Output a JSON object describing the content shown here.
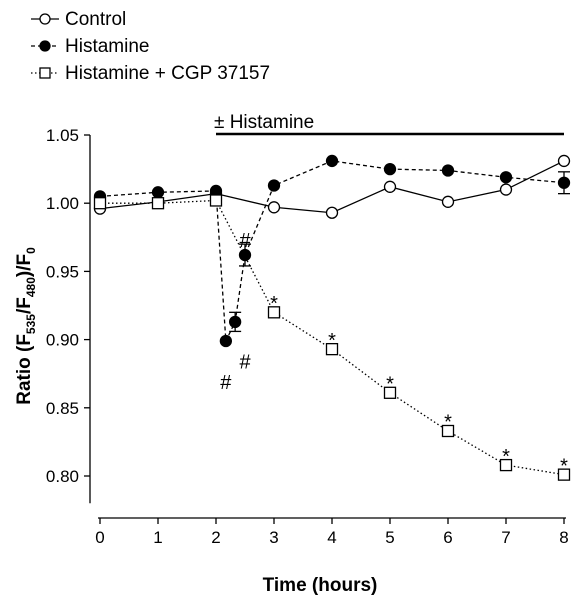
{
  "chart_data": {
    "type": "line",
    "title": "",
    "xlabel": "Time (hours)",
    "ylabel_parts": [
      "Ratio (F",
      "535",
      "/F",
      "480",
      ")/F",
      "0"
    ],
    "xlim": [
      0,
      8
    ],
    "ylim": [
      0.78,
      1.05
    ],
    "x_ticks": [
      0,
      1,
      2,
      3,
      4,
      5,
      6,
      7,
      8
    ],
    "y_ticks": [
      0.8,
      0.85,
      0.9,
      0.95,
      1.0,
      1.05
    ],
    "y_tick_labels": [
      "0.80",
      "0.85",
      "0.90",
      "0.95",
      "1.00",
      "1.05"
    ],
    "grid": false,
    "legend_position": "top-left",
    "treatment_bar": {
      "label": "± Histamine",
      "x_start": 2,
      "x_end": 8
    },
    "series": [
      {
        "name": "Control",
        "marker": "open-circle",
        "line": "solid",
        "x": [
          0,
          1,
          2,
          3,
          4,
          5,
          6,
          7,
          8
        ],
        "y": [
          0.996,
          1.001,
          1.007,
          0.997,
          0.993,
          1.012,
          1.001,
          1.01,
          1.031
        ],
        "err": [
          0,
          0,
          0,
          0,
          0,
          0,
          0,
          0,
          0
        ]
      },
      {
        "name": "Histamine",
        "marker": "filled-circle",
        "line": "dashed",
        "x": [
          0,
          1,
          2,
          2.17,
          2.33,
          2.5,
          3,
          4,
          5,
          6,
          7,
          8
        ],
        "y": [
          1.005,
          1.008,
          1.009,
          0.899,
          0.913,
          0.962,
          1.013,
          1.031,
          1.025,
          1.024,
          1.019,
          1.015
        ],
        "err": [
          0,
          0,
          0,
          0,
          0.007,
          0.008,
          0,
          0,
          0,
          0,
          0,
          0.008
        ]
      },
      {
        "name": "Histamine + CGP 37157",
        "marker": "open-square",
        "line": "dotted",
        "x": [
          0,
          1,
          2,
          3,
          4,
          5,
          6,
          7,
          8
        ],
        "y": [
          1.0,
          1.0,
          1.002,
          0.92,
          0.893,
          0.861,
          0.833,
          0.808,
          0.801
        ],
        "err": [
          0,
          0,
          0,
          0,
          0,
          0,
          0,
          0,
          0
        ]
      }
    ],
    "annotations": [
      {
        "text": "#",
        "x": 2.17,
        "y": 0.869
      },
      {
        "text": "#",
        "x": 2.5,
        "y": 0.884
      },
      {
        "text": "#",
        "x": 2.5,
        "y": 0.973
      },
      {
        "text": "*",
        "x": 3,
        "y": 0.929
      },
      {
        "text": "*",
        "x": 4,
        "y": 0.902
      },
      {
        "text": "*",
        "x": 5,
        "y": 0.87
      },
      {
        "text": "*",
        "x": 6,
        "y": 0.842
      },
      {
        "text": "*",
        "x": 7,
        "y": 0.817
      },
      {
        "text": "*",
        "x": 8,
        "y": 0.81
      }
    ]
  }
}
